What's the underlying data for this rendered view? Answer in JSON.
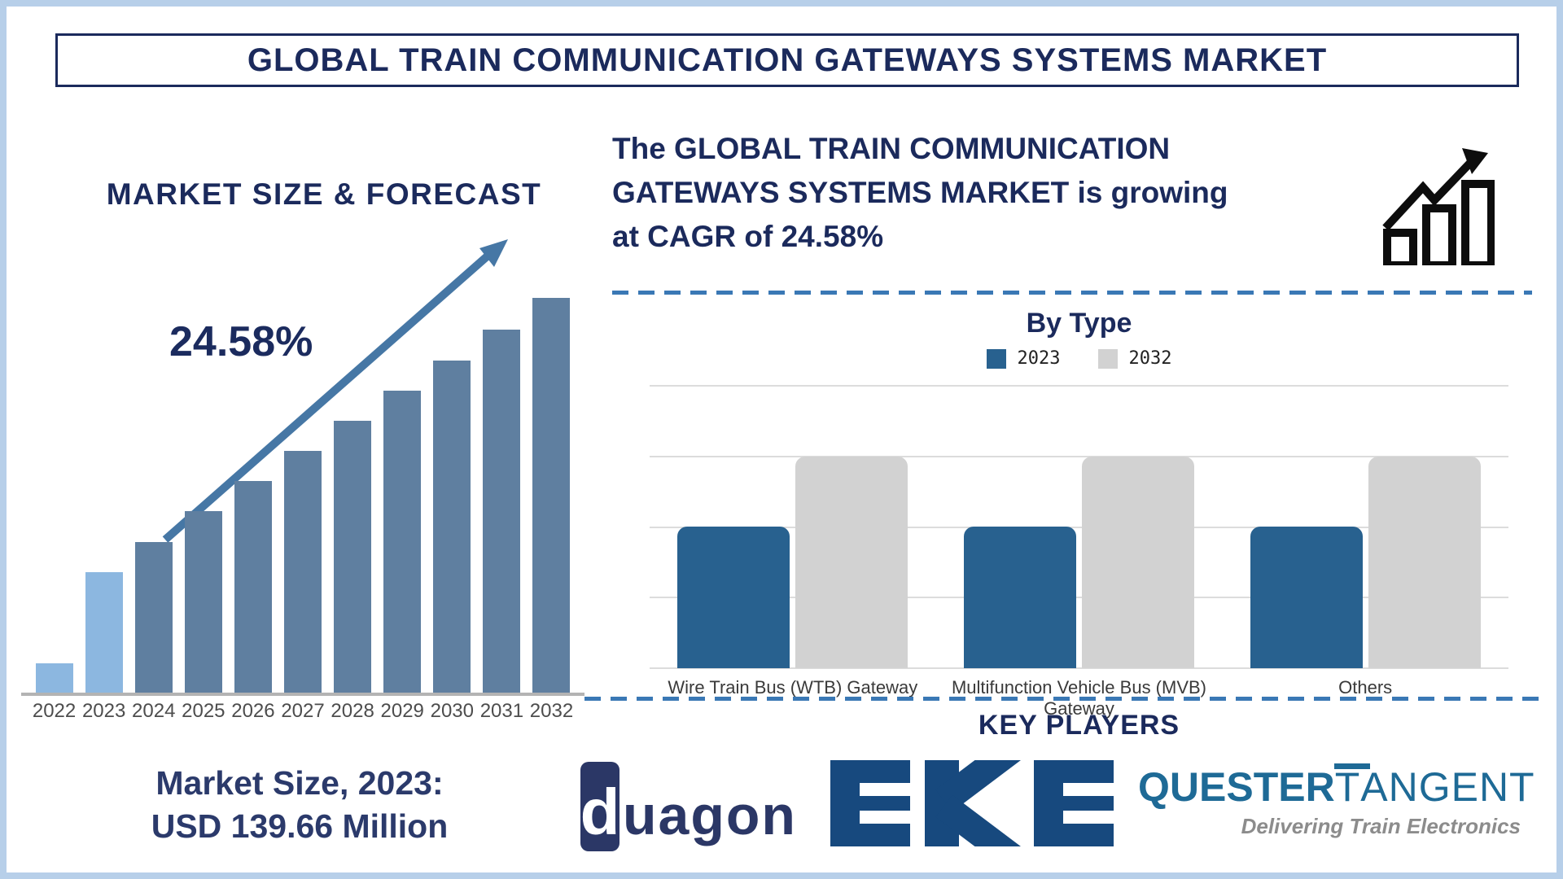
{
  "page": {
    "title": "GLOBAL TRAIN COMMUNICATION GATEWAYS SYSTEMS MARKET"
  },
  "colors": {
    "navy_text": "#1b2a5c",
    "bar_light_blue": "#8cb7e0",
    "bar_steel_blue": "#5f7fa0",
    "trend_arrow": "#4677a5",
    "bytype_2023_blue": "#28618f",
    "bytype_2032_gray": "#d2d2d2",
    "dashed_line": "#3a78b5",
    "page_border": "#b7cfe9",
    "eke_navy": "#17497e",
    "duagon_navy": "#2b3766",
    "quester_blue": "#1e6a96",
    "tagline_gray": "#8c8c8c"
  },
  "icons": {
    "growth": "growth-chart-icon",
    "trend": "trend-arrow-icon"
  },
  "forecast": {
    "title": "MARKET SIZE & FORECAST",
    "cagr_label": "24.58%",
    "market_size_line1": "Market Size, 2023:",
    "market_size_line2": "USD 139.66 Million"
  },
  "headline": {
    "lines": [
      "The GLOBAL TRAIN COMMUNICATION",
      "GATEWAYS SYSTEMS MARKET is growing",
      "at CAGR of 24.58%"
    ]
  },
  "by_type": {
    "title": "By Type"
  },
  "key_players": {
    "heading": "KEY PLAYERS",
    "duagon": {
      "d": "d",
      "rest": "uagon"
    },
    "eke": {
      "text": "EKE"
    },
    "quester": {
      "part1": "QUESTER",
      "t": "T",
      "rest": "ANGENT",
      "tagline": "Delivering Train Electronics"
    }
  },
  "chart_data": [
    {
      "type": "bar",
      "title": "MARKET SIZE & FORECAST",
      "categories": [
        "2022",
        "2023",
        "2024",
        "2025",
        "2026",
        "2027",
        "2028",
        "2029",
        "2030",
        "2031",
        "2032"
      ],
      "values": [
        38,
        150,
        187,
        225,
        262,
        299,
        336,
        373,
        410,
        448,
        487
      ],
      "unit": "bar height in px (value axis not labeled in source)",
      "highlight_first_n": 2,
      "highlight_color": "#8cb7e0",
      "bar_color": "#5f7fa0",
      "annotation": "24.58%",
      "known_point": {
        "year": "2023",
        "value": "USD 139.66 Million"
      },
      "xlabel": "",
      "ylabel": "",
      "grid": false,
      "legend_position": "none"
    },
    {
      "type": "bar",
      "title": "By Type",
      "categories": [
        "Wire Train Bus (WTB) Gateway",
        "Multifunction Vehicle Bus (MVB) Gateway",
        "Others"
      ],
      "series": [
        {
          "name": "2023",
          "values": [
            2,
            2,
            2
          ],
          "color": "#28618f"
        },
        {
          "name": "2032",
          "values": [
            3,
            3,
            3
          ],
          "color": "#d2d2d2"
        }
      ],
      "ylim": [
        0,
        4
      ],
      "unit": "relative units (value axis not labeled in source)",
      "grid": true,
      "legend_position": "top"
    }
  ]
}
